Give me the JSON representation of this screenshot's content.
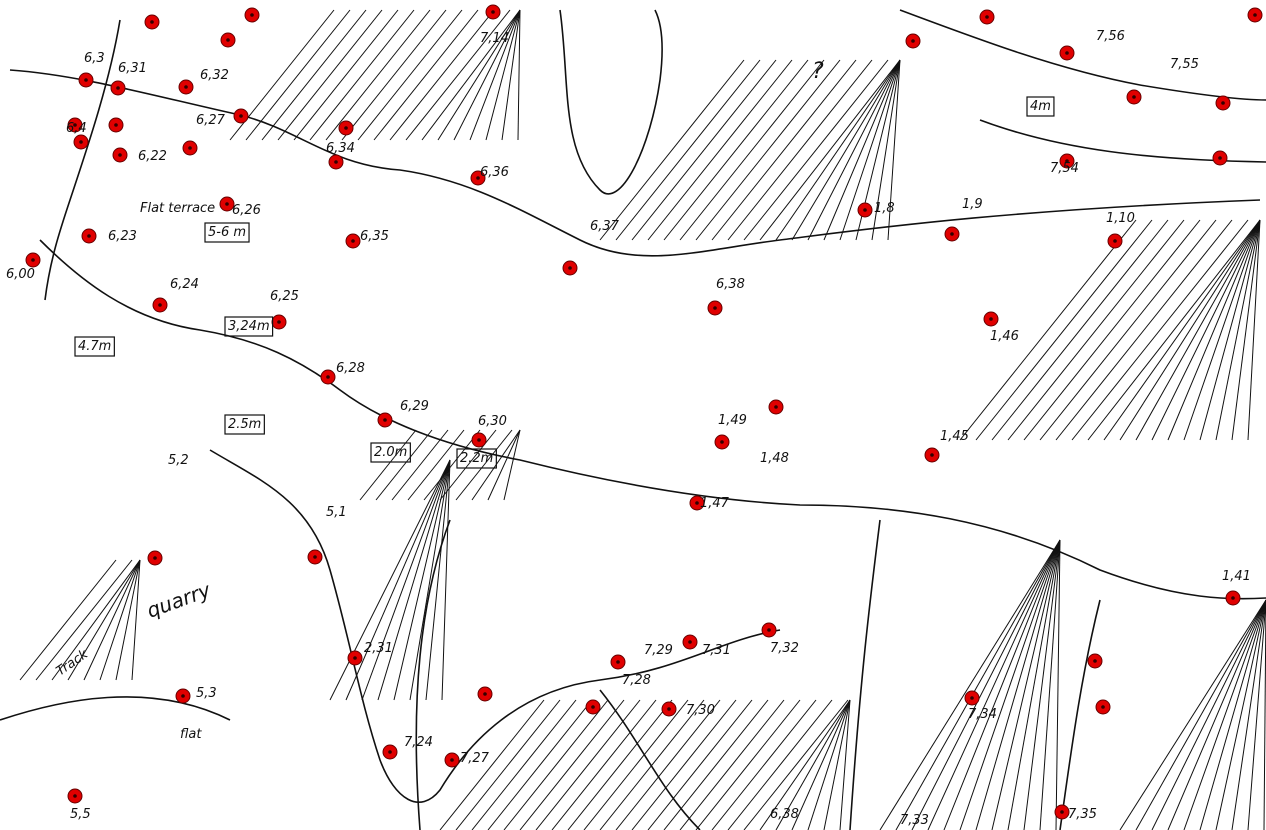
{
  "labels": [
    {
      "text": "6,3"
    },
    {
      "text": "6,31"
    },
    {
      "text": "6,32"
    },
    {
      "text": "6,27"
    },
    {
      "text": "6,22"
    },
    {
      "text": "6,4"
    },
    {
      "text": "6,23"
    },
    {
      "text": "6,26"
    },
    {
      "text": "Flat terrace"
    },
    {
      "text": "5-6 m"
    },
    {
      "text": "6,24"
    },
    {
      "text": "6,25"
    },
    {
      "text": "3,24m"
    },
    {
      "text": "4.7m"
    },
    {
      "text": "6,28"
    },
    {
      "text": "6,29"
    },
    {
      "text": "2.5m"
    },
    {
      "text": "2.0m"
    },
    {
      "text": "6,30"
    },
    {
      "text": "2.2m"
    },
    {
      "text": "6,34"
    },
    {
      "text": "6,35"
    },
    {
      "text": "6,36"
    },
    {
      "text": "6,37"
    },
    {
      "text": "6,38"
    },
    {
      "text": "7,14"
    },
    {
      "text": "7,56"
    },
    {
      "text": "7,55"
    },
    {
      "text": "4m"
    },
    {
      "text": "7,54"
    },
    {
      "text": "1,8"
    },
    {
      "text": "1,9"
    },
    {
      "text": "1,10"
    },
    {
      "text": "1,46"
    },
    {
      "text": "1,45"
    },
    {
      "text": "1,49"
    },
    {
      "text": "1,48"
    },
    {
      "text": "1,47"
    },
    {
      "text": "5,1"
    },
    {
      "text": "5,2"
    },
    {
      "text": "5,3"
    },
    {
      "text": "5,5"
    },
    {
      "text": "7,24"
    },
    {
      "text": "7,27"
    },
    {
      "text": "2,31"
    },
    {
      "text": "7,28"
    },
    {
      "text": "7,29"
    },
    {
      "text": "7,31"
    },
    {
      "text": "7,32"
    },
    {
      "text": "7,30"
    },
    {
      "text": "7,34"
    },
    {
      "text": "7,33"
    },
    {
      "text": "7,35"
    },
    {
      "text": "1,41"
    },
    {
      "text": "6,00"
    },
    {
      "text": "quarry"
    },
    {
      "text": "Track"
    },
    {
      "text": "flat"
    },
    {
      "text": "?"
    },
    {
      "text": "6,38"
    }
  ]
}
